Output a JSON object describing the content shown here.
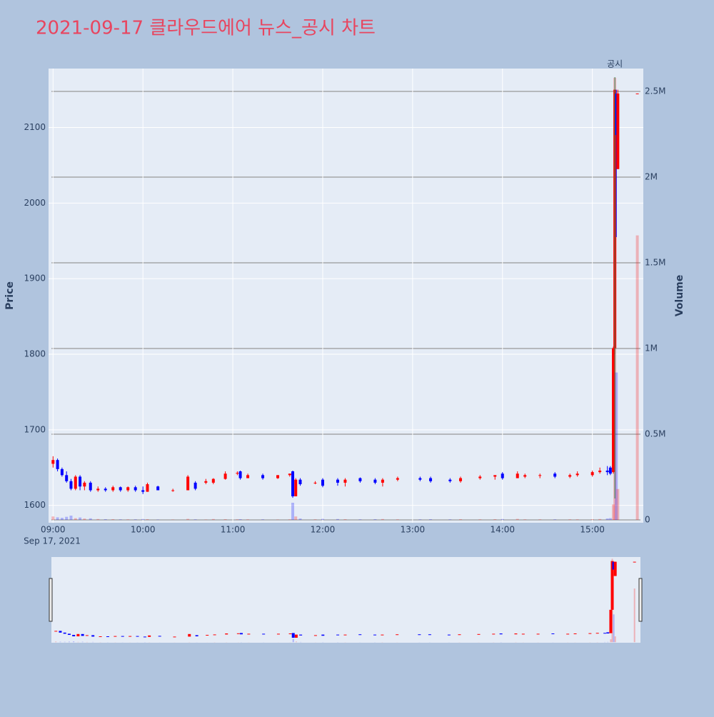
{
  "chart_data": {
    "type": "candlestick",
    "title": "2021-09-17 클라우드에어 뉴스_공시 차트",
    "y_label": "Price",
    "y2_label": "Volume",
    "x_date_label": "Sep 17, 2021",
    "xlim": [
      "08:57",
      "15:34"
    ],
    "xticks": [
      "09:00",
      "10:00",
      "11:00",
      "12:00",
      "13:00",
      "14:00",
      "15:00"
    ],
    "ylim": [
      1577,
      2178
    ],
    "yticks": [
      1600,
      1700,
      1800,
      1900,
      2000,
      2100
    ],
    "y2lim": [
      -16667,
      2633333
    ],
    "y2ticks": [
      0,
      {
        "value": 500000,
        "label": "0.5M"
      },
      {
        "value": 1000000,
        "label": "1M"
      },
      {
        "value": 1500000,
        "label": "1.5M"
      },
      {
        "value": 2000000,
        "label": "2M"
      },
      {
        "value": 2500000,
        "label": "2.5M"
      }
    ],
    "increasing_color": "#ff0000",
    "decreasing_color": "#0000ff",
    "grid": true,
    "x": [
      "09:00",
      "09:03",
      "09:06",
      "09:09",
      "09:12",
      "09:15",
      "09:18",
      "09:21",
      "09:25",
      "09:30",
      "09:35",
      "09:40",
      "09:45",
      "09:50",
      "09:55",
      "10:00",
      "10:03",
      "10:10",
      "10:20",
      "10:30",
      "10:35",
      "10:42",
      "10:47",
      "10:55",
      "11:03",
      "11:05",
      "11:10",
      "11:20",
      "11:30",
      "11:38",
      "11:40",
      "11:42",
      "11:45",
      "11:55",
      "12:00",
      "12:10",
      "12:15",
      "12:25",
      "12:35",
      "12:40",
      "12:50",
      "13:05",
      "13:12",
      "13:25",
      "13:32",
      "13:45",
      "13:55",
      "14:00",
      "14:10",
      "14:15",
      "14:25",
      "14:35",
      "14:45",
      "14:50",
      "15:00",
      "15:05",
      "15:10",
      "15:12",
      "15:14",
      "15:15",
      "15:16",
      "15:17",
      "15:30"
    ],
    "open": [
      1655,
      1660,
      1648,
      1640,
      1632,
      1622,
      1638,
      1625,
      1630,
      1620,
      1622,
      1620,
      1624,
      1620,
      1624,
      1620,
      1618,
      1625,
      1620,
      1620,
      1630,
      1630,
      1630,
      1635,
      1642,
      1645,
      1636,
      1640,
      1636,
      1640,
      1645,
      1612,
      1634,
      1630,
      1634,
      1634,
      1630,
      1636,
      1634,
      1630,
      1634,
      1636,
      1636,
      1634,
      1632,
      1636,
      1638,
      1642,
      1636,
      1638,
      1640,
      1642,
      1638,
      1640,
      1640,
      1644,
      1646,
      1650,
      1644,
      1808,
      2145,
      2045,
      2145
    ],
    "high": [
      1665,
      1662,
      1650,
      1645,
      1635,
      1640,
      1640,
      1632,
      1632,
      1625,
      1624,
      1626,
      1625,
      1625,
      1626,
      1625,
      1630,
      1626,
      1622,
      1640,
      1632,
      1635,
      1636,
      1645,
      1645,
      1646,
      1642,
      1642,
      1640,
      1642,
      1646,
      1636,
      1636,
      1632,
      1636,
      1636,
      1636,
      1637,
      1636,
      1636,
      1638,
      1638,
      1638,
      1636,
      1638,
      1640,
      1640,
      1644,
      1645,
      1642,
      1642,
      1644,
      1642,
      1645,
      1646,
      1650,
      1652,
      1652,
      1810,
      2150,
      2150,
      2150,
      2145
    ],
    "low": [
      1650,
      1645,
      1638,
      1630,
      1620,
      1620,
      1620,
      1620,
      1618,
      1618,
      1618,
      1618,
      1618,
      1618,
      1618,
      1615,
      1618,
      1620,
      1618,
      1620,
      1620,
      1628,
      1628,
      1634,
      1640,
      1634,
      1636,
      1634,
      1635,
      1638,
      1610,
      1612,
      1626,
      1628,
      1624,
      1626,
      1625,
      1630,
      1628,
      1625,
      1632,
      1632,
      1630,
      1630,
      1630,
      1634,
      1634,
      1634,
      1636,
      1636,
      1636,
      1636,
      1636,
      1638,
      1638,
      1642,
      1640,
      1640,
      1642,
      1800,
      1955,
      2045,
      2145
    ],
    "close": [
      1660,
      1648,
      1640,
      1632,
      1622,
      1638,
      1625,
      1630,
      1620,
      1622,
      1620,
      1624,
      1620,
      1624,
      1620,
      1618,
      1628,
      1620,
      1620,
      1638,
      1622,
      1632,
      1635,
      1642,
      1643,
      1636,
      1640,
      1636,
      1640,
      1642,
      1612,
      1634,
      1628,
      1630,
      1626,
      1630,
      1634,
      1632,
      1630,
      1634,
      1636,
      1634,
      1632,
      1632,
      1636,
      1638,
      1640,
      1636,
      1642,
      1640,
      1640,
      1638,
      1640,
      1642,
      1644,
      1646,
      1644,
      1642,
      1808,
      2150,
      2090,
      2145,
      2145
    ],
    "volume": [
      20000,
      15000,
      12000,
      18000,
      25000,
      10000,
      14000,
      8000,
      9000,
      5000,
      4000,
      4000,
      3000,
      3000,
      3000,
      5000,
      4000,
      2000,
      2000,
      6000,
      3000,
      2000,
      5000,
      4000,
      3000,
      4000,
      3000,
      3000,
      2000,
      3000,
      100000,
      20000,
      8000,
      3000,
      6000,
      5000,
      4000,
      3000,
      4000,
      5000,
      3000,
      3000,
      4000,
      3000,
      4000,
      3000,
      4000,
      5000,
      6000,
      3000,
      3000,
      3000,
      3000,
      3000,
      4000,
      5000,
      8000,
      10000,
      90000,
      2580000,
      860000,
      180000,
      1660000
    ],
    "annotations": [
      {
        "x": "15:15",
        "text": "공시"
      }
    ]
  }
}
